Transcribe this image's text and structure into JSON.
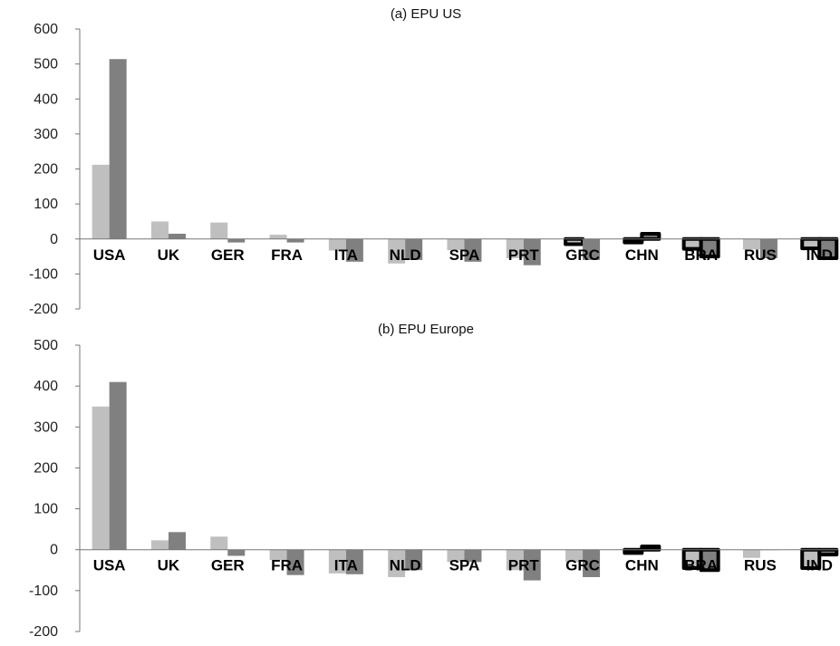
{
  "chart_data": [
    {
      "type": "bar",
      "title": "(a) EPU US",
      "categories": [
        "USA",
        "UK",
        "GER",
        "FRA",
        "ITA",
        "NLD",
        "SPA",
        "PRT",
        "GRC",
        "CHN",
        "BRA",
        "RUS",
        "IND"
      ],
      "series": [
        {
          "values": [
            212,
            50,
            47,
            12,
            -33,
            -70,
            -32,
            -55,
            -15,
            -10,
            -28,
            -30,
            -27
          ],
          "color": "#bfbfbf"
        },
        {
          "values": [
            514,
            15,
            -10,
            -10,
            -65,
            -60,
            -65,
            -75,
            -60,
            15,
            -50,
            -55,
            -55
          ],
          "color": "#808080"
        }
      ],
      "outlined": {
        "CHN": [
          true,
          true
        ],
        "BRA": [
          true,
          true
        ],
        "IND": [
          true,
          true
        ],
        "GRC": [
          true,
          false
        ]
      },
      "ylim": [
        -200,
        600
      ],
      "yticks": [
        -200,
        -100,
        0,
        100,
        200,
        300,
        400,
        500,
        600
      ],
      "xlabel": "",
      "ylabel": "",
      "grid": false,
      "legend": "none"
    },
    {
      "type": "bar",
      "title": "(b) EPU Europe",
      "categories": [
        "USA",
        "UK",
        "GER",
        "FRA",
        "ITA",
        "NLD",
        "SPA",
        "PRT",
        "GRC",
        "CHN",
        "BRA",
        "RUS",
        "IND"
      ],
      "series": [
        {
          "values": [
            350,
            23,
            32,
            -25,
            -58,
            -67,
            -30,
            -50,
            -30,
            -8,
            -45,
            -20,
            -45
          ],
          "color": "#bfbfbf"
        },
        {
          "values": [
            410,
            43,
            -15,
            -62,
            -60,
            -50,
            -30,
            -75,
            -67,
            8,
            -50,
            0,
            -12
          ],
          "color": "#808080"
        }
      ],
      "outlined": {
        "CHN": [
          true,
          true
        ],
        "BRA": [
          true,
          true
        ],
        "IND": [
          true,
          true
        ]
      },
      "ylim": [
        -200,
        500
      ],
      "yticks": [
        -200,
        -100,
        0,
        100,
        200,
        300,
        400,
        500
      ],
      "xlabel": "",
      "ylabel": "",
      "grid": false,
      "legend": "none"
    }
  ]
}
